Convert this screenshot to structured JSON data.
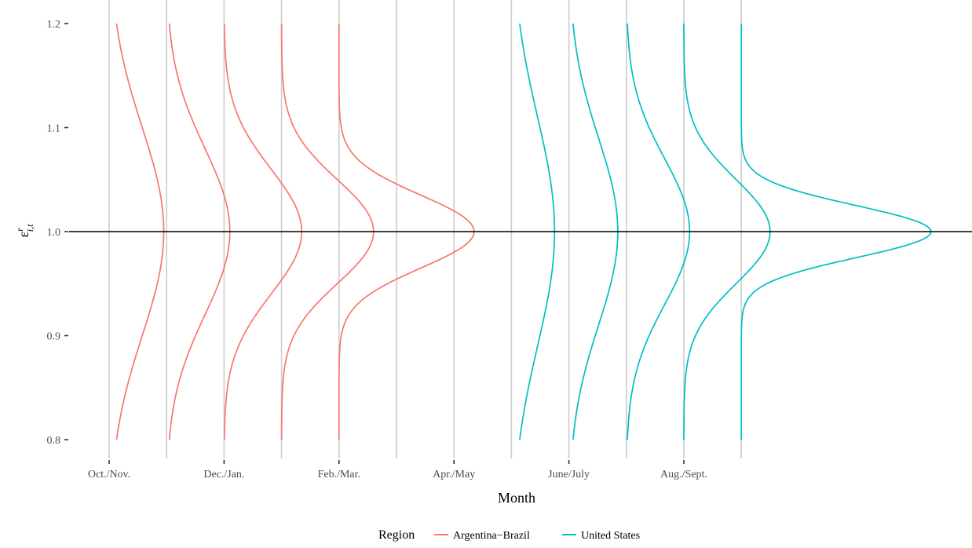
{
  "chart_data": {
    "type": "line",
    "title": "",
    "xlabel": "Month",
    "ylabel": {
      "base": "ε",
      "sup": "r",
      "sub": "i,t"
    },
    "ylim": [
      0.8,
      1.2
    ],
    "yticks": [
      "0.8",
      "0.9",
      "1.0",
      "1.1",
      "1.2"
    ],
    "ytick_values": [
      0.8,
      0.9,
      1.0,
      1.1,
      1.2
    ],
    "xtick_labels": [
      "Oct./Nov.",
      "Dec./Jan.",
      "Feb./Mar.",
      "Apr./May",
      "June/July",
      "Aug./Sept."
    ],
    "reference_line": 1.0,
    "grid": "vertical only",
    "legend": {
      "title": "Region",
      "position": "bottom",
      "entries": [
        {
          "name": "Argentina−Brazil",
          "color": "#F8766D"
        },
        {
          "name": "United States",
          "color": "#00BFC4"
        }
      ]
    },
    "series": [
      {
        "name": "Argentina−Brazil",
        "color": "#F8766D",
        "month_index": 1,
        "center": 1.0,
        "sd": 0.1,
        "peak_width": 0.95
      },
      {
        "name": "Argentina−Brazil",
        "color": "#F8766D",
        "month_index": 2,
        "center": 1.0,
        "sd": 0.08,
        "peak_width": 1.1
      },
      {
        "name": "Argentina−Brazil",
        "color": "#F8766D",
        "month_index": 3,
        "center": 1.0,
        "sd": 0.06,
        "peak_width": 1.35
      },
      {
        "name": "Argentina−Brazil",
        "color": "#F8766D",
        "month_index": 4,
        "center": 1.0,
        "sd": 0.05,
        "peak_width": 1.6
      },
      {
        "name": "Argentina−Brazil",
        "color": "#F8766D",
        "month_index": 5,
        "center": 1.0,
        "sd": 0.035,
        "peak_width": 2.35
      },
      {
        "name": "United States",
        "color": "#00BFC4",
        "month_index": 8,
        "center": 1.0,
        "sd": 0.11,
        "peak_width": 0.75
      },
      {
        "name": "United States",
        "color": "#00BFC4",
        "month_index": 9,
        "center": 1.0,
        "sd": 0.09,
        "peak_width": 0.85
      },
      {
        "name": "United States",
        "color": "#00BFC4",
        "month_index": 10,
        "center": 1.0,
        "sd": 0.07,
        "peak_width": 1.1
      },
      {
        "name": "United States",
        "color": "#00BFC4",
        "month_index": 11,
        "center": 1.0,
        "sd": 0.05,
        "peak_width": 1.5
      },
      {
        "name": "United States",
        "color": "#00BFC4",
        "month_index": 12,
        "center": 1.0,
        "sd": 0.025,
        "peak_width": 3.3
      }
    ]
  }
}
